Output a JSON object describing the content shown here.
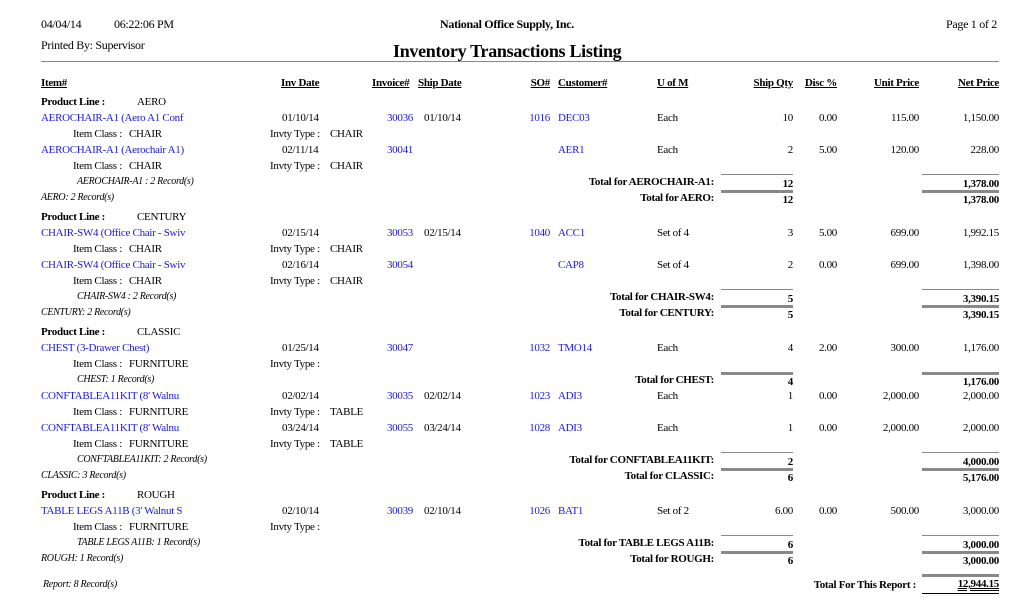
{
  "header": {
    "date": "04/04/14",
    "time": "06:22:06 PM",
    "printed_by": "Printed By: Supervisor",
    "company": "National Office Supply, Inc.",
    "page": "Page 1 of 2",
    "title": "Inventory Transactions Listing"
  },
  "columns": {
    "item": "Item#",
    "inv_date": "Inv Date",
    "invoice": "Invoice#",
    "ship_date": "Ship Date",
    "so": "SO#",
    "customer": "Customer#",
    "uofm": "U of M",
    "ship_qty": "Ship Qty",
    "disc": "Disc %",
    "unit_price": "Unit Price",
    "net_price": "Net Price"
  },
  "labels": {
    "product_line": "Product Line :",
    "item_class": "Item Class :",
    "invty_type": "Invty Type :"
  },
  "colors": {
    "link": "#1a1adb",
    "rule": "#888888"
  },
  "product_lines": [
    {
      "name": "AERO",
      "summary": "AERO: 2 Record(s)",
      "total_label": "Total for AERO:",
      "total_qty": "12",
      "total_net": "1,378.00",
      "groups": [
        {
          "summary": "AEROCHAIR-A1 : 2 Record(s)",
          "total_label": "Total for AEROCHAIR-A1:",
          "total_qty": "12",
          "total_net": "1,378.00",
          "transactions": [
            {
              "item": "AEROCHAIR-A1 (Aero A1 Conf",
              "inv_date": "01/10/14",
              "invoice": "30036",
              "ship_date": "01/10/14",
              "so": "1016",
              "customer": "DEC03",
              "uofm": "Each",
              "ship_qty": "10",
              "disc": "0.00",
              "unit_price": "115.00",
              "net_price": "1,150.00",
              "item_class": "CHAIR",
              "invty_type": "CHAIR"
            },
            {
              "item": "AEROCHAIR-A1 (Aerochair A1)",
              "inv_date": "02/11/14",
              "invoice": "30041",
              "ship_date": "",
              "so": "",
              "customer": "AER1",
              "uofm": "Each",
              "ship_qty": "2",
              "disc": "5.00",
              "unit_price": "120.00",
              "net_price": "228.00",
              "item_class": "CHAIR",
              "invty_type": "CHAIR"
            }
          ]
        }
      ]
    },
    {
      "name": "CENTURY",
      "summary": "CENTURY: 2 Record(s)",
      "total_label": "Total for CENTURY:",
      "total_qty": "5",
      "total_net": "3,390.15",
      "groups": [
        {
          "summary": "CHAIR-SW4 : 2 Record(s)",
          "total_label": "Total for CHAIR-SW4:",
          "total_qty": "5",
          "total_net": "3,390.15",
          "transactions": [
            {
              "item": "CHAIR-SW4 (Office Chair - Swiv",
              "inv_date": "02/15/14",
              "invoice": "30053",
              "ship_date": "02/15/14",
              "so": "1040",
              "customer": "ACC1",
              "uofm": "Set of 4",
              "ship_qty": "3",
              "disc": "5.00",
              "unit_price": "699.00",
              "net_price": "1,992.15",
              "item_class": "CHAIR",
              "invty_type": "CHAIR"
            },
            {
              "item": "CHAIR-SW4 (Office Chair - Swiv",
              "inv_date": "02/16/14",
              "invoice": "30054",
              "ship_date": "",
              "so": "",
              "customer": "CAP8",
              "uofm": "Set of 4",
              "ship_qty": "2",
              "disc": "0.00",
              "unit_price": "699.00",
              "net_price": "1,398.00",
              "item_class": "CHAIR",
              "invty_type": "CHAIR"
            }
          ]
        }
      ]
    },
    {
      "name": "CLASSIC",
      "summary": "CLASSIC: 3 Record(s)",
      "total_label": "Total for CLASSIC:",
      "total_qty": "6",
      "total_net": "5,176.00",
      "groups": [
        {
          "summary": "CHEST: 1 Record(s)",
          "total_label": "Total for CHEST:",
          "total_qty": "4",
          "total_net": "1,176.00",
          "transactions": [
            {
              "item": "CHEST (3-Drawer Chest)",
              "inv_date": "01/25/14",
              "invoice": "30047",
              "ship_date": "",
              "so": "1032",
              "customer": "TMO14",
              "uofm": "Each",
              "ship_qty": "4",
              "disc": "2.00",
              "unit_price": "300.00",
              "net_price": "1,176.00",
              "item_class": "FURNITURE",
              "invty_type": ""
            }
          ]
        },
        {
          "summary": "CONFTABLEA11KIT: 2 Record(s)",
          "total_label": "Total for CONFTABLEA11KIT:",
          "total_qty": "2",
          "total_net": "4,000.00",
          "transactions": [
            {
              "item": "CONFTABLEA11KIT (8' Walnu",
              "inv_date": "02/02/14",
              "invoice": "30035",
              "ship_date": "02/02/14",
              "so": "1023",
              "customer": "ADI3",
              "uofm": "Each",
              "ship_qty": "1",
              "disc": "0.00",
              "unit_price": "2,000.00",
              "net_price": "2,000.00",
              "item_class": "FURNITURE",
              "invty_type": "TABLE"
            },
            {
              "item": "CONFTABLEA11KIT (8' Walnu",
              "inv_date": "03/24/14",
              "invoice": "30055",
              "ship_date": "03/24/14",
              "so": "1028",
              "customer": "ADI3",
              "uofm": "Each",
              "ship_qty": "1",
              "disc": "0.00",
              "unit_price": "2,000.00",
              "net_price": "2,000.00",
              "item_class": "FURNITURE",
              "invty_type": "TABLE"
            }
          ]
        }
      ]
    },
    {
      "name": "ROUGH",
      "summary": "ROUGH: 1 Record(s)",
      "total_label": "Total for ROUGH:",
      "total_qty": "6",
      "total_net": "3,000.00",
      "groups": [
        {
          "summary": "TABLE LEGS A11B: 1 Record(s)",
          "total_label": "Total for TABLE LEGS A11B:",
          "total_qty": "6",
          "total_net": "3,000.00",
          "transactions": [
            {
              "item": "TABLE LEGS A11B (3' Walnut S",
              "inv_date": "02/10/14",
              "invoice": "30039",
              "ship_date": "02/10/14",
              "so": "1026",
              "customer": "BAT1",
              "uofm": "Set of 2",
              "ship_qty": "6.00",
              "disc": "0.00",
              "unit_price": "500.00",
              "net_price": "3,000.00",
              "item_class": "FURNITURE",
              "invty_type": ""
            }
          ]
        }
      ]
    }
  ],
  "report": {
    "summary": "Report: 8 Record(s)",
    "total_label": "Total For This Report :",
    "total_net": "12,944.15"
  }
}
